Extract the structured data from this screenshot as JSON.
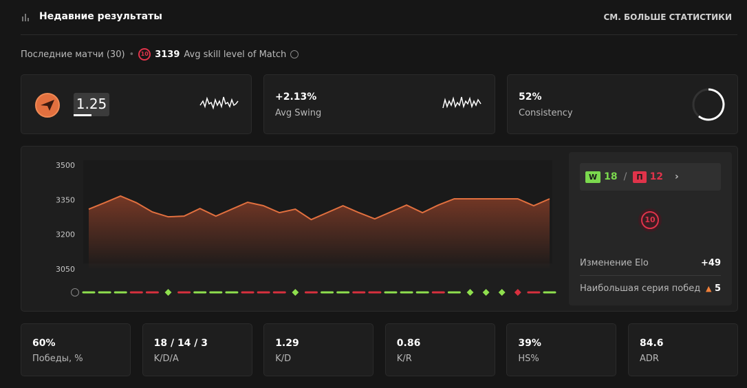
{
  "header": {
    "title": "Недавние результаты",
    "link": "СМ. БОЛЬШЕ СТАТИСТИКИ"
  },
  "summary": {
    "matches": "Последние матчи (30)",
    "level": "10",
    "avg_elo": "3139",
    "avg_label": "Avg skill level of Match"
  },
  "cards": [
    {
      "value": "1.25"
    },
    {
      "value": "+2.13%",
      "label": "Avg Swing"
    },
    {
      "value": "52%",
      "label": "Consistency"
    }
  ],
  "chart": {
    "type": "line",
    "ylim": [
      3050,
      3500
    ],
    "yticks": [
      3500,
      3350,
      3200,
      3050
    ],
    "color": "#e2703f",
    "values": [
      3312,
      3340,
      3369,
      3340,
      3300,
      3279,
      3282,
      3315,
      3282,
      3312,
      3342,
      3327,
      3297,
      3312,
      3267,
      3297,
      3327,
      3297,
      3270,
      3300,
      3330,
      3297,
      3330,
      3357,
      3357,
      3357,
      3357,
      3357,
      3327,
      3357
    ],
    "results": [
      "W",
      "W",
      "W",
      "L",
      "L",
      "W",
      "L",
      "W",
      "W",
      "W",
      "L",
      "L",
      "L",
      "W",
      "L",
      "W",
      "W",
      "L",
      "L",
      "W",
      "W",
      "W",
      "L",
      "W",
      "W",
      "W",
      "W",
      "L",
      "L",
      "W"
    ],
    "highlight": [
      false,
      false,
      false,
      false,
      false,
      true,
      false,
      false,
      false,
      false,
      false,
      false,
      false,
      true,
      false,
      false,
      false,
      false,
      false,
      false,
      false,
      false,
      false,
      false,
      true,
      true,
      true,
      true,
      false,
      false
    ]
  },
  "side": {
    "win_badge": "W",
    "wins": "18",
    "sep": "/",
    "loss_badge": "П",
    "losses": "12",
    "level": "10",
    "elo_label": "Изменение Elo",
    "elo_value": "+49",
    "streak_label": "Наибольшая серия побед",
    "streak_value": "5"
  },
  "stats": [
    {
      "value": "60%",
      "label": "Победы, %"
    },
    {
      "value": "18 / 14 / 3",
      "label": "K/D/A"
    },
    {
      "value": "1.29",
      "label": "K/D"
    },
    {
      "value": "0.86",
      "label": "K/R"
    },
    {
      "value": "39%",
      "label": "HS%"
    },
    {
      "value": "84.6",
      "label": "ADR"
    }
  ]
}
